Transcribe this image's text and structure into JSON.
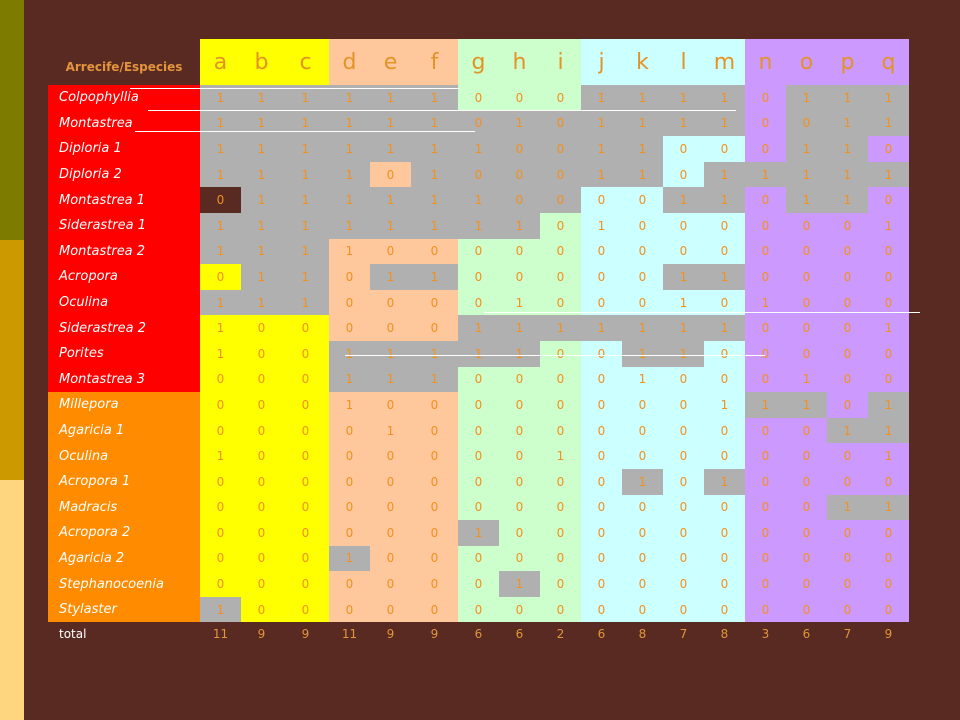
{
  "colors": {
    "background": "#582a22",
    "stripe_top": "#7d7c00",
    "stripe_mid": "#cc9900",
    "stripe_bot": "#ffd680",
    "group_red": "#ff0000",
    "group_orange": "#ff8c00",
    "cell_gray": "#b0b0b0",
    "cell_dark": "#582a22",
    "colgroup_yellow": "#ffff00",
    "colgroup_peach": "#ffc89c",
    "colgroup_green": "#ccffcc",
    "colgroup_cyan": "#ccffff",
    "colgroup_purple": "#cc99ff"
  },
  "table": {
    "corner_label": "Arrecife/Especies",
    "columns": [
      "a",
      "b",
      "c",
      "d",
      "e",
      "f",
      "g",
      "h",
      "i",
      "j",
      "k",
      "l",
      "m",
      "n",
      "o",
      "p",
      "q"
    ],
    "column_groups": [
      "yellow",
      "yellow",
      "yellow",
      "peach",
      "peach",
      "peach",
      "green",
      "green",
      "green",
      "cyan",
      "cyan",
      "cyan",
      "cyan",
      "purple",
      "purple",
      "purple",
      "purple"
    ],
    "rows": [
      {
        "label": "Colpophyllia",
        "group": "red",
        "values": [
          1,
          1,
          1,
          1,
          1,
          1,
          0,
          0,
          0,
          1,
          1,
          1,
          1,
          0,
          1,
          1,
          1
        ],
        "gray": [
          1,
          1,
          1,
          1,
          1,
          1,
          0,
          0,
          0,
          1,
          1,
          1,
          1,
          0,
          1,
          1,
          1
        ]
      },
      {
        "label": "Montastrea",
        "group": "red",
        "values": [
          1,
          1,
          1,
          1,
          1,
          1,
          0,
          1,
          0,
          1,
          1,
          1,
          1,
          0,
          0,
          1,
          1
        ],
        "gray": [
          1,
          1,
          1,
          1,
          1,
          1,
          1,
          1,
          1,
          1,
          1,
          1,
          1,
          0,
          1,
          1,
          1
        ]
      },
      {
        "label": "Diploria 1",
        "group": "red",
        "values": [
          1,
          1,
          1,
          1,
          1,
          1,
          1,
          0,
          0,
          1,
          1,
          0,
          0,
          0,
          1,
          1,
          0
        ],
        "gray": [
          1,
          1,
          1,
          1,
          1,
          1,
          1,
          1,
          1,
          1,
          1,
          0,
          0,
          0,
          1,
          1,
          0
        ]
      },
      {
        "label": "Diploria 2",
        "group": "red",
        "values": [
          1,
          1,
          1,
          1,
          0,
          1,
          0,
          0,
          0,
          1,
          1,
          0,
          1,
          1,
          1,
          1,
          1
        ],
        "gray": [
          1,
          1,
          1,
          1,
          0,
          1,
          1,
          1,
          1,
          1,
          1,
          0,
          1,
          1,
          1,
          1,
          1
        ]
      },
      {
        "label": "Montastrea 1",
        "group": "red",
        "values": [
          0,
          1,
          1,
          1,
          1,
          1,
          1,
          0,
          0,
          0,
          0,
          1,
          1,
          0,
          1,
          1,
          0
        ],
        "gray": [
          2,
          1,
          1,
          1,
          1,
          1,
          1,
          1,
          1,
          0,
          0,
          1,
          1,
          0,
          1,
          1,
          0
        ]
      },
      {
        "label": "Siderastrea 1",
        "group": "red",
        "values": [
          1,
          1,
          1,
          1,
          1,
          1,
          1,
          1,
          0,
          1,
          0,
          0,
          0,
          0,
          0,
          0,
          1
        ],
        "gray": [
          1,
          1,
          1,
          1,
          1,
          1,
          1,
          1,
          0,
          0,
          0,
          0,
          0,
          0,
          0,
          0,
          0
        ]
      },
      {
        "label": "Montastrea 2",
        "group": "red",
        "values": [
          1,
          1,
          1,
          1,
          0,
          0,
          0,
          0,
          0,
          0,
          0,
          0,
          0,
          0,
          0,
          0,
          0
        ],
        "gray": [
          1,
          1,
          1,
          0,
          0,
          0,
          0,
          0,
          0,
          0,
          0,
          0,
          0,
          0,
          0,
          0,
          0
        ]
      },
      {
        "label": "Acropora",
        "group": "red",
        "values": [
          0,
          1,
          1,
          0,
          1,
          1,
          0,
          0,
          0,
          0,
          0,
          1,
          1,
          0,
          0,
          0,
          0
        ],
        "gray": [
          0,
          1,
          1,
          0,
          1,
          1,
          0,
          0,
          0,
          0,
          0,
          1,
          1,
          0,
          0,
          0,
          0
        ]
      },
      {
        "label": "Oculina",
        "group": "red",
        "values": [
          1,
          1,
          1,
          0,
          0,
          0,
          0,
          1,
          0,
          0,
          0,
          1,
          0,
          1,
          0,
          0,
          0
        ],
        "gray": [
          1,
          1,
          1,
          0,
          0,
          0,
          0,
          0,
          0,
          0,
          0,
          0,
          0,
          0,
          0,
          0,
          0
        ]
      },
      {
        "label": "Siderastrea 2",
        "group": "red",
        "values": [
          1,
          0,
          0,
          0,
          0,
          0,
          1,
          1,
          1,
          1,
          1,
          1,
          1,
          0,
          0,
          0,
          1
        ],
        "gray": [
          0,
          0,
          0,
          0,
          0,
          0,
          1,
          1,
          1,
          1,
          1,
          1,
          1,
          0,
          0,
          0,
          0
        ]
      },
      {
        "label": "Porites",
        "group": "red",
        "values": [
          1,
          0,
          0,
          1,
          1,
          1,
          1,
          1,
          0,
          0,
          1,
          1,
          0,
          0,
          0,
          0,
          0
        ],
        "gray": [
          0,
          0,
          0,
          1,
          1,
          1,
          1,
          1,
          0,
          0,
          1,
          1,
          0,
          0,
          0,
          0,
          0
        ]
      },
      {
        "label": "Montastrea 3",
        "group": "red",
        "values": [
          0,
          0,
          0,
          1,
          1,
          1,
          0,
          0,
          0,
          0,
          1,
          0,
          0,
          0,
          1,
          0,
          0
        ],
        "gray": [
          0,
          0,
          0,
          1,
          1,
          1,
          0,
          0,
          0,
          0,
          0,
          0,
          0,
          0,
          0,
          0,
          0
        ]
      },
      {
        "label": "Millepora",
        "group": "orange",
        "values": [
          0,
          0,
          0,
          1,
          0,
          0,
          0,
          0,
          0,
          0,
          0,
          0,
          1,
          1,
          1,
          0,
          1
        ],
        "gray": [
          0,
          0,
          0,
          0,
          0,
          0,
          0,
          0,
          0,
          0,
          0,
          0,
          0,
          1,
          1,
          0,
          1
        ]
      },
      {
        "label": "Agaricia 1",
        "group": "orange",
        "values": [
          0,
          0,
          0,
          0,
          1,
          0,
          0,
          0,
          0,
          0,
          0,
          0,
          0,
          0,
          0,
          1,
          1
        ],
        "gray": [
          0,
          0,
          0,
          0,
          0,
          0,
          0,
          0,
          0,
          0,
          0,
          0,
          0,
          0,
          0,
          1,
          1
        ]
      },
      {
        "label": "Oculina",
        "group": "orange",
        "values": [
          1,
          0,
          0,
          0,
          0,
          0,
          0,
          0,
          1,
          0,
          0,
          0,
          0,
          0,
          0,
          0,
          1
        ],
        "gray": [
          0,
          0,
          0,
          0,
          0,
          0,
          0,
          0,
          0,
          0,
          0,
          0,
          0,
          0,
          0,
          0,
          0
        ]
      },
      {
        "label": "Acropora 1",
        "group": "orange",
        "values": [
          0,
          0,
          0,
          0,
          0,
          0,
          0,
          0,
          0,
          0,
          1,
          0,
          1,
          0,
          0,
          0,
          0
        ],
        "gray": [
          0,
          0,
          0,
          0,
          0,
          0,
          0,
          0,
          0,
          0,
          1,
          0,
          1,
          0,
          0,
          0,
          0
        ]
      },
      {
        "label": "Madracis",
        "group": "orange",
        "values": [
          0,
          0,
          0,
          0,
          0,
          0,
          0,
          0,
          0,
          0,
          0,
          0,
          0,
          0,
          0,
          1,
          1
        ],
        "gray": [
          0,
          0,
          0,
          0,
          0,
          0,
          0,
          0,
          0,
          0,
          0,
          0,
          0,
          0,
          0,
          1,
          1
        ]
      },
      {
        "label": "Acropora 2",
        "group": "orange",
        "values": [
          0,
          0,
          0,
          0,
          0,
          0,
          1,
          0,
          0,
          0,
          0,
          0,
          0,
          0,
          0,
          0,
          0
        ],
        "gray": [
          0,
          0,
          0,
          0,
          0,
          0,
          1,
          0,
          0,
          0,
          0,
          0,
          0,
          0,
          0,
          0,
          0
        ]
      },
      {
        "label": "Agaricia 2",
        "group": "orange",
        "values": [
          0,
          0,
          0,
          1,
          0,
          0,
          0,
          0,
          0,
          0,
          0,
          0,
          0,
          0,
          0,
          0,
          0
        ],
        "gray": [
          0,
          0,
          0,
          1,
          0,
          0,
          0,
          0,
          0,
          0,
          0,
          0,
          0,
          0,
          0,
          0,
          0
        ]
      },
      {
        "label": "Stephanocoenia",
        "group": "orange",
        "values": [
          0,
          0,
          0,
          0,
          0,
          0,
          0,
          1,
          0,
          0,
          0,
          0,
          0,
          0,
          0,
          0,
          0
        ],
        "gray": [
          0,
          0,
          0,
          0,
          0,
          0,
          0,
          1,
          0,
          0,
          0,
          0,
          0,
          0,
          0,
          0,
          0
        ]
      },
      {
        "label": "Stylaster",
        "group": "orange",
        "values": [
          1,
          0,
          0,
          0,
          0,
          0,
          0,
          0,
          0,
          0,
          0,
          0,
          0,
          0,
          0,
          0,
          0
        ],
        "gray": [
          1,
          0,
          0,
          0,
          0,
          0,
          0,
          0,
          0,
          0,
          0,
          0,
          0,
          0,
          0,
          0,
          0
        ]
      }
    ],
    "total_label": "total",
    "totals": [
      11,
      9,
      9,
      11,
      9,
      9,
      6,
      6,
      2,
      6,
      8,
      7,
      8,
      3,
      6,
      7,
      9
    ]
  }
}
